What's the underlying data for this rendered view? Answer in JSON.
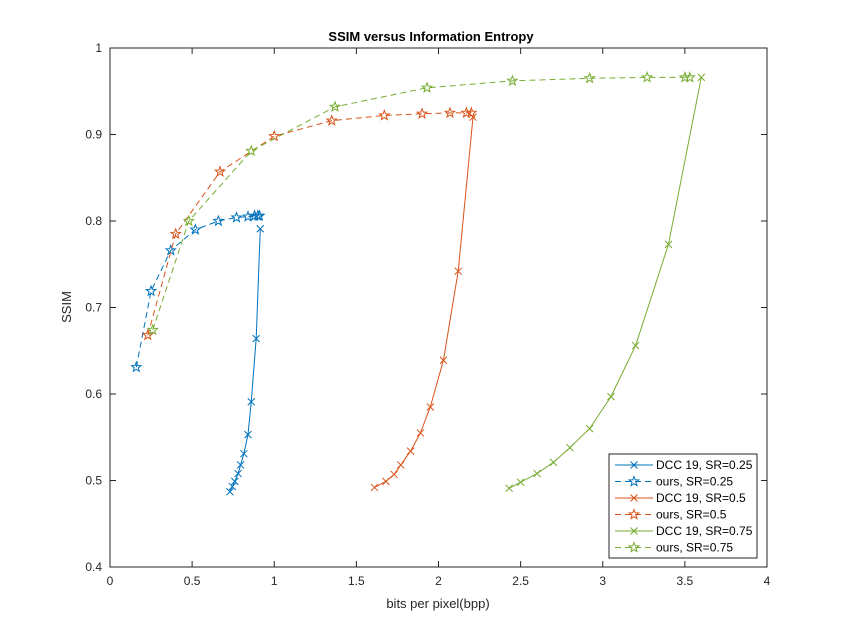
{
  "chart_data": {
    "type": "line",
    "title": "SSIM versus Information Entropy",
    "xlabel": "bits per pixel(bpp)",
    "ylabel": "SSIM",
    "xlim": [
      0,
      4
    ],
    "ylim": [
      0.4,
      1
    ],
    "xticks": [
      "0",
      "0.5",
      "1",
      "1.5",
      "2",
      "2.5",
      "3",
      "3.5",
      "4"
    ],
    "yticks": [
      "0.4",
      "0.5",
      "0.6",
      "0.7",
      "0.8",
      "0.9",
      "1"
    ],
    "grid": false,
    "legend_position": "bottom-right",
    "series": [
      {
        "name": "DCC 19, SR=0.25",
        "color": "#0072BD",
        "style": "solid",
        "marker": "x",
        "points": [
          [
            0.73,
            0.487
          ],
          [
            0.745,
            0.493
          ],
          [
            0.76,
            0.499
          ],
          [
            0.78,
            0.508
          ],
          [
            0.795,
            0.518
          ],
          [
            0.815,
            0.531
          ],
          [
            0.84,
            0.553
          ],
          [
            0.86,
            0.591
          ],
          [
            0.89,
            0.664
          ],
          [
            0.915,
            0.791
          ]
        ]
      },
      {
        "name": "ours, SR=0.25",
        "color": "#0072BD",
        "style": "dashed",
        "marker": "star",
        "points": [
          [
            0.16,
            0.631
          ],
          [
            0.25,
            0.719
          ],
          [
            0.37,
            0.766
          ],
          [
            0.52,
            0.79
          ],
          [
            0.66,
            0.8
          ],
          [
            0.77,
            0.804
          ],
          [
            0.84,
            0.805
          ],
          [
            0.88,
            0.806
          ],
          [
            0.9,
            0.806
          ],
          [
            0.91,
            0.806
          ]
        ]
      },
      {
        "name": "DCC 19, SR=0.5",
        "color": "#D95319",
        "style": "solid",
        "marker": "x",
        "points": [
          [
            1.61,
            0.492
          ],
          [
            1.68,
            0.499
          ],
          [
            1.73,
            0.507
          ],
          [
            1.77,
            0.518
          ],
          [
            1.83,
            0.534
          ],
          [
            1.89,
            0.555
          ],
          [
            1.95,
            0.585
          ],
          [
            2.03,
            0.639
          ],
          [
            2.12,
            0.742
          ],
          [
            2.21,
            0.92
          ]
        ]
      },
      {
        "name": "ours, SR=0.5",
        "color": "#D95319",
        "style": "dashed",
        "marker": "star",
        "points": [
          [
            0.23,
            0.668
          ],
          [
            0.4,
            0.785
          ],
          [
            0.67,
            0.857
          ],
          [
            1.0,
            0.898
          ],
          [
            1.35,
            0.916
          ],
          [
            1.67,
            0.922
          ],
          [
            1.9,
            0.924
          ],
          [
            2.07,
            0.925
          ],
          [
            2.17,
            0.925
          ],
          [
            2.2,
            0.925
          ]
        ]
      },
      {
        "name": "DCC 19, SR=0.75",
        "color": "#77AC30",
        "style": "solid",
        "marker": "x",
        "points": [
          [
            2.43,
            0.491
          ],
          [
            2.5,
            0.498
          ],
          [
            2.6,
            0.508
          ],
          [
            2.7,
            0.521
          ],
          [
            2.8,
            0.538
          ],
          [
            2.92,
            0.56
          ],
          [
            3.05,
            0.597
          ],
          [
            3.2,
            0.656
          ],
          [
            3.4,
            0.773
          ],
          [
            3.6,
            0.966
          ]
        ]
      },
      {
        "name": "ours, SR=0.75",
        "color": "#77AC30",
        "style": "dashed",
        "marker": "star",
        "points": [
          [
            0.26,
            0.674
          ],
          [
            0.48,
            0.8
          ],
          [
            0.86,
            0.881
          ],
          [
            1.37,
            0.932
          ],
          [
            1.93,
            0.954
          ],
          [
            2.45,
            0.962
          ],
          [
            2.92,
            0.965
          ],
          [
            3.27,
            0.966
          ],
          [
            3.5,
            0.966
          ],
          [
            3.53,
            0.966
          ]
        ]
      }
    ]
  }
}
